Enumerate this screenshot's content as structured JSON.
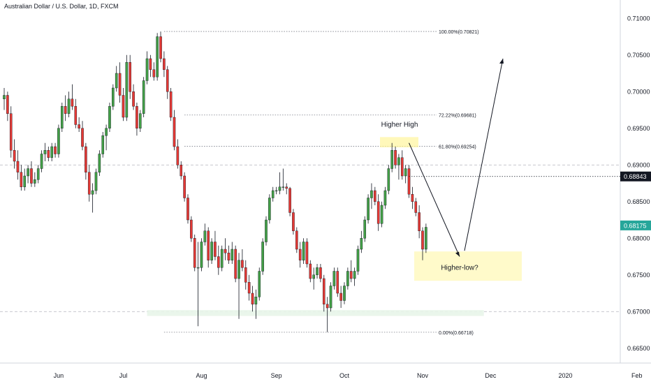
{
  "chart_data": {
    "type": "candlestick",
    "title": "Australian Dollar / U.S. Dollar, 1D, FXCM",
    "ylim": [
      0.6625,
      0.7125
    ],
    "y_ticks": [
      "0.71000",
      "0.70500",
      "0.70000",
      "0.69500",
      "0.69000",
      "0.68500",
      "0.68000",
      "0.67500",
      "0.67000",
      "0.66500"
    ],
    "x_ticks": [
      {
        "label": "Jun",
        "index": 16
      },
      {
        "label": "Jul",
        "index": 35
      },
      {
        "label": "Aug",
        "index": 58
      },
      {
        "label": "Sep",
        "index": 80
      },
      {
        "label": "Oct",
        "index": 100
      },
      {
        "label": "Nov",
        "index": 123
      },
      {
        "label": "Dec",
        "index": 143
      },
      {
        "label": "2020",
        "index": 165
      },
      {
        "label": "Feb",
        "index": 186
      }
    ],
    "price_labels": [
      {
        "value": 0.68843,
        "text": "0.68843",
        "color": "#131722"
      },
      {
        "value": 0.68175,
        "text": "0.68175",
        "color": "#26a69a"
      }
    ],
    "fib_levels": [
      {
        "value": 0.70821,
        "label": "100.00%(0.70821)"
      },
      {
        "value": 0.69681,
        "label": "72.22%(0.69681)"
      },
      {
        "value": 0.69254,
        "label": "61.80%(0.69254)"
      },
      {
        "value": 0.66718,
        "label": "0.00%(0.66718)"
      }
    ],
    "horizontal_levels": [
      0.69,
      0.67
    ],
    "annotations": [
      {
        "text": "Higher High",
        "value": 0.6955,
        "index": 123
      },
      {
        "text": "Higher-low?",
        "value": 0.676,
        "index": 136
      }
    ],
    "candles": [
      [
        0.699,
        0.7005,
        0.6975,
        0.6995
      ],
      [
        0.6995,
        0.7,
        0.696,
        0.697
      ],
      [
        0.697,
        0.698,
        0.691,
        0.692
      ],
      [
        0.692,
        0.6935,
        0.6895,
        0.6905
      ],
      [
        0.6905,
        0.692,
        0.688,
        0.689
      ],
      [
        0.689,
        0.69,
        0.6865,
        0.687
      ],
      [
        0.687,
        0.6895,
        0.6865,
        0.6885
      ],
      [
        0.6885,
        0.69,
        0.6875,
        0.6895
      ],
      [
        0.6895,
        0.6905,
        0.687,
        0.6875
      ],
      [
        0.6875,
        0.689,
        0.687,
        0.688
      ],
      [
        0.688,
        0.69,
        0.6875,
        0.6895
      ],
      [
        0.6895,
        0.692,
        0.689,
        0.6915
      ],
      [
        0.6915,
        0.693,
        0.6905,
        0.692
      ],
      [
        0.692,
        0.6925,
        0.6905,
        0.691
      ],
      [
        0.691,
        0.693,
        0.6905,
        0.6925
      ],
      [
        0.6925,
        0.693,
        0.691,
        0.6915
      ],
      [
        0.6915,
        0.6955,
        0.691,
        0.695
      ],
      [
        0.695,
        0.6985,
        0.6945,
        0.698
      ],
      [
        0.698,
        0.6995,
        0.696,
        0.697
      ],
      [
        0.697,
        0.7,
        0.6965,
        0.699
      ],
      [
        0.699,
        0.701,
        0.6975,
        0.698
      ],
      [
        0.698,
        0.699,
        0.695,
        0.6955
      ],
      [
        0.6955,
        0.6965,
        0.6945,
        0.695
      ],
      [
        0.695,
        0.696,
        0.692,
        0.6925
      ],
      [
        0.6925,
        0.693,
        0.688,
        0.689
      ],
      [
        0.689,
        0.69,
        0.685,
        0.686
      ],
      [
        0.686,
        0.6875,
        0.6835,
        0.6865
      ],
      [
        0.6865,
        0.6895,
        0.686,
        0.689
      ],
      [
        0.689,
        0.692,
        0.6885,
        0.6915
      ],
      [
        0.6915,
        0.6945,
        0.691,
        0.694
      ],
      [
        0.694,
        0.6955,
        0.692,
        0.695
      ],
      [
        0.695,
        0.6985,
        0.6945,
        0.698
      ],
      [
        0.698,
        0.701,
        0.6975,
        0.7005
      ],
      [
        0.7005,
        0.7035,
        0.7,
        0.7025
      ],
      [
        0.7025,
        0.704,
        0.6985,
        0.6995
      ],
      [
        0.6995,
        0.7005,
        0.696,
        0.6965
      ],
      [
        0.6965,
        0.705,
        0.696,
        0.704
      ],
      [
        0.704,
        0.705,
        0.699,
        0.7
      ],
      [
        0.7,
        0.701,
        0.6975,
        0.698
      ],
      [
        0.698,
        0.6985,
        0.694,
        0.695
      ],
      [
        0.695,
        0.6975,
        0.6945,
        0.697
      ],
      [
        0.697,
        0.702,
        0.6965,
        0.7015
      ],
      [
        0.7015,
        0.7055,
        0.701,
        0.7045
      ],
      [
        0.7045,
        0.705,
        0.702,
        0.703
      ],
      [
        0.703,
        0.704,
        0.7015,
        0.702
      ],
      [
        0.702,
        0.708,
        0.7015,
        0.7075
      ],
      [
        0.7075,
        0.7082,
        0.704,
        0.7045
      ],
      [
        0.7045,
        0.7055,
        0.702,
        0.703
      ],
      [
        0.703,
        0.7035,
        0.699,
        0.7
      ],
      [
        0.7,
        0.7005,
        0.696,
        0.6965
      ],
      [
        0.6965,
        0.6975,
        0.692,
        0.6925
      ],
      [
        0.6925,
        0.6935,
        0.6895,
        0.69
      ],
      [
        0.69,
        0.6905,
        0.688,
        0.6885
      ],
      [
        0.6885,
        0.689,
        0.685,
        0.6855
      ],
      [
        0.6855,
        0.686,
        0.682,
        0.6825
      ],
      [
        0.6825,
        0.683,
        0.6795,
        0.68
      ],
      [
        0.68,
        0.6805,
        0.6755,
        0.676
      ],
      [
        0.676,
        0.6795,
        0.668,
        0.676
      ],
      [
        0.676,
        0.68,
        0.6755,
        0.6795
      ],
      [
        0.6795,
        0.682,
        0.679,
        0.681
      ],
      [
        0.681,
        0.6815,
        0.676,
        0.677
      ],
      [
        0.677,
        0.68,
        0.6765,
        0.6795
      ],
      [
        0.6795,
        0.681,
        0.677,
        0.6775
      ],
      [
        0.6775,
        0.679,
        0.675,
        0.676
      ],
      [
        0.676,
        0.679,
        0.6755,
        0.6785
      ],
      [
        0.6785,
        0.68,
        0.677,
        0.678
      ],
      [
        0.678,
        0.679,
        0.6765,
        0.677
      ],
      [
        0.677,
        0.6795,
        0.6765,
        0.6785
      ],
      [
        0.6785,
        0.679,
        0.674,
        0.6745
      ],
      [
        0.6745,
        0.678,
        0.669,
        0.677
      ],
      [
        0.677,
        0.6785,
        0.6755,
        0.676
      ],
      [
        0.676,
        0.677,
        0.673,
        0.674
      ],
      [
        0.674,
        0.675,
        0.6715,
        0.6725
      ],
      [
        0.6725,
        0.6735,
        0.67,
        0.671
      ],
      [
        0.671,
        0.673,
        0.669,
        0.672
      ],
      [
        0.672,
        0.676,
        0.6715,
        0.6755
      ],
      [
        0.6755,
        0.68,
        0.675,
        0.6795
      ],
      [
        0.6795,
        0.683,
        0.679,
        0.6825
      ],
      [
        0.6825,
        0.686,
        0.682,
        0.6855
      ],
      [
        0.6855,
        0.687,
        0.685,
        0.6865
      ],
      [
        0.6865,
        0.687,
        0.686,
        0.6865
      ],
      [
        0.6865,
        0.689,
        0.686,
        0.687
      ],
      [
        0.687,
        0.6895,
        0.6865,
        0.687
      ],
      [
        0.687,
        0.6875,
        0.686,
        0.6868
      ],
      [
        0.6868,
        0.687,
        0.683,
        0.6835
      ],
      [
        0.6835,
        0.684,
        0.6805,
        0.681
      ],
      [
        0.681,
        0.6815,
        0.678,
        0.6785
      ],
      [
        0.6785,
        0.6795,
        0.676,
        0.677
      ],
      [
        0.677,
        0.68,
        0.6765,
        0.6795
      ],
      [
        0.6795,
        0.68,
        0.676,
        0.6765
      ],
      [
        0.6765,
        0.677,
        0.674,
        0.6745
      ],
      [
        0.6745,
        0.676,
        0.673,
        0.675
      ],
      [
        0.675,
        0.6765,
        0.6745,
        0.676
      ],
      [
        0.676,
        0.6765,
        0.674,
        0.6745
      ],
      [
        0.6745,
        0.675,
        0.67,
        0.671
      ],
      [
        0.671,
        0.672,
        0.6672,
        0.6705
      ],
      [
        0.6705,
        0.674,
        0.67,
        0.6735
      ],
      [
        0.6735,
        0.676,
        0.673,
        0.6755
      ],
      [
        0.6755,
        0.676,
        0.672,
        0.6725
      ],
      [
        0.6725,
        0.6735,
        0.6705,
        0.6715
      ],
      [
        0.6715,
        0.674,
        0.671,
        0.6735
      ],
      [
        0.6735,
        0.676,
        0.673,
        0.6755
      ],
      [
        0.6755,
        0.677,
        0.674,
        0.6745
      ],
      [
        0.6745,
        0.676,
        0.6735,
        0.6755
      ],
      [
        0.6755,
        0.679,
        0.675,
        0.6785
      ],
      [
        0.6785,
        0.681,
        0.678,
        0.68
      ],
      [
        0.68,
        0.683,
        0.6795,
        0.6825
      ],
      [
        0.6825,
        0.686,
        0.682,
        0.6855
      ],
      [
        0.6855,
        0.6875,
        0.684,
        0.6865
      ],
      [
        0.6865,
        0.687,
        0.6845,
        0.685
      ],
      [
        0.685,
        0.686,
        0.681,
        0.682
      ],
      [
        0.682,
        0.685,
        0.6815,
        0.6845
      ],
      [
        0.6845,
        0.687,
        0.684,
        0.6865
      ],
      [
        0.6865,
        0.69,
        0.686,
        0.6895
      ],
      [
        0.6895,
        0.693,
        0.689,
        0.692
      ],
      [
        0.692,
        0.6925,
        0.6895,
        0.69
      ],
      [
        0.69,
        0.6915,
        0.688,
        0.691
      ],
      [
        0.691,
        0.692,
        0.688,
        0.6885
      ],
      [
        0.6885,
        0.69,
        0.6875,
        0.6895
      ],
      [
        0.6895,
        0.69,
        0.6855,
        0.686
      ],
      [
        0.686,
        0.687,
        0.684,
        0.685
      ],
      [
        0.685,
        0.6855,
        0.683,
        0.6835
      ],
      [
        0.6835,
        0.6845,
        0.68,
        0.681
      ],
      [
        0.681,
        0.6815,
        0.677,
        0.6785
      ],
      [
        0.6785,
        0.682,
        0.678,
        0.6815
      ]
    ]
  }
}
